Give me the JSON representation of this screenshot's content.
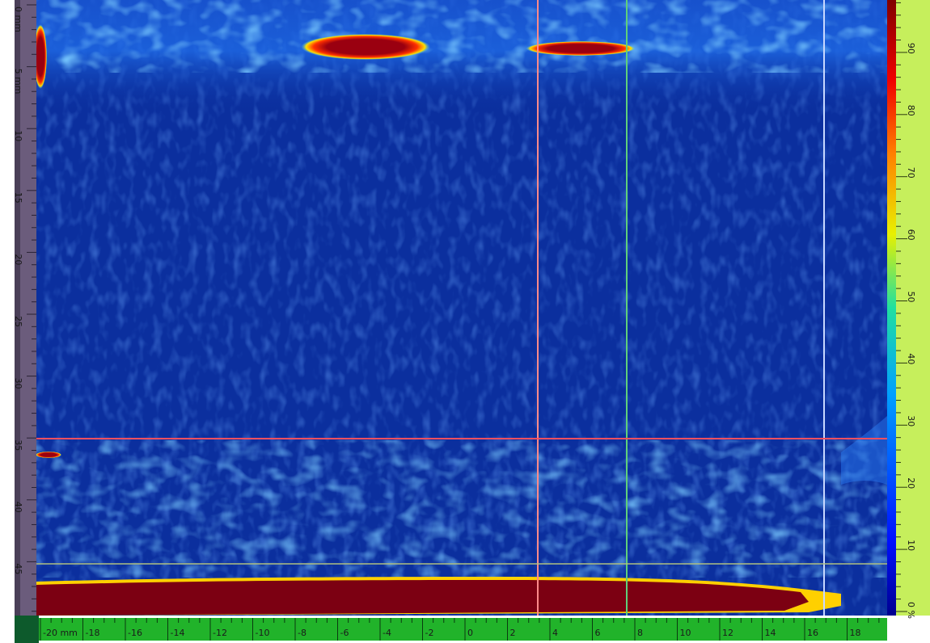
{
  "depth_ruler": {
    "labels": [
      "0 mm",
      "5 mm",
      "10",
      "15",
      "20",
      "25",
      "30",
      "35",
      "40",
      "45"
    ]
  },
  "scan_ruler": {
    "labels": [
      "-20 mm",
      "-18",
      "-16",
      "-14",
      "-12",
      "-10",
      "-8",
      "-6",
      "-4",
      "-2",
      "0",
      "2",
      "4",
      "6",
      "8",
      "10",
      "12",
      "14",
      "16",
      "18"
    ]
  },
  "amplitude_scale": {
    "labels": [
      "0 %",
      "10",
      "20",
      "30",
      "40",
      "50",
      "60",
      "70",
      "80",
      "90"
    ]
  }
}
